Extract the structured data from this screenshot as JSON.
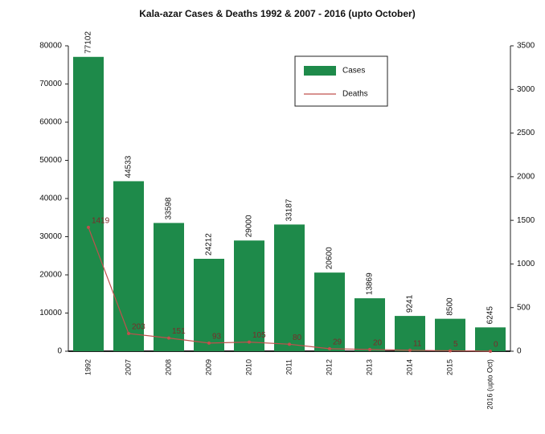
{
  "chart_data": {
    "type": "bar_line",
    "title": "Kala-azar Cases & Deaths 1992 & 2007 - 2016 (upto October)",
    "categories": [
      "1992",
      "2007",
      "2008",
      "2009",
      "2010",
      "2011",
      "2012",
      "2013",
      "2014",
      "2015",
      "2016 (upto Oct)"
    ],
    "series": [
      {
        "name": "Cases",
        "color": "#1e8a4a",
        "values": [
          77102,
          44533,
          33598,
          24212,
          29000,
          33187,
          20600,
          13869,
          9241,
          8500,
          6245
        ]
      },
      {
        "name": "Deaths",
        "color": "#c0504d",
        "axis": "y2",
        "values": [
          1419,
          203,
          151,
          93,
          105,
          80,
          29,
          20,
          11,
          5,
          0
        ]
      }
    ],
    "ylim": [
      0,
      80000
    ],
    "yticks": [
      0,
      10000,
      20000,
      30000,
      40000,
      50000,
      60000,
      70000,
      80000
    ],
    "y2lim": [
      0,
      3500
    ],
    "y2ticks": [
      0,
      500,
      1000,
      1500,
      2000,
      2500,
      3000,
      3500
    ],
    "legend": "upper right"
  }
}
